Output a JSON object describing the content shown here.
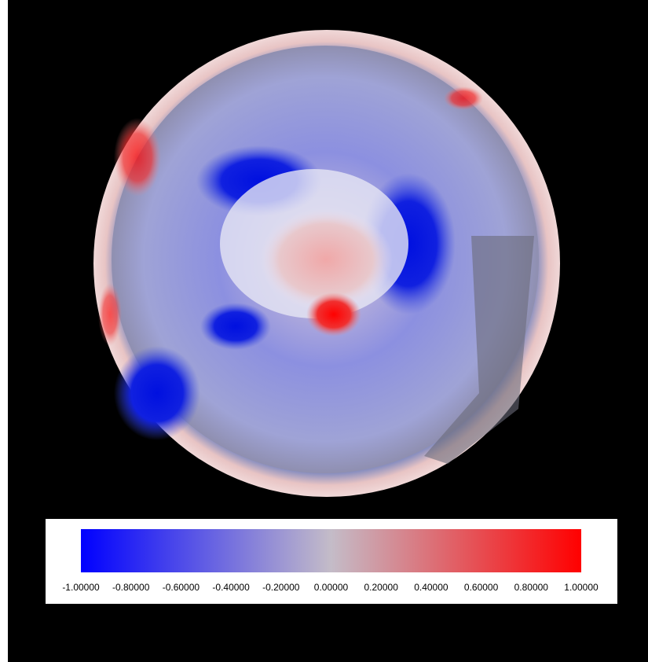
{
  "chart_data": {
    "type": "colorbar",
    "colormap": [
      "#0000ff",
      "#c4bcc8",
      "#ff0000"
    ],
    "xlim": [
      -1,
      1
    ],
    "xticks": [
      {
        "value": -1,
        "label": "-1.00000"
      },
      {
        "value": -0.8,
        "label": "-0.80000"
      },
      {
        "value": -0.6,
        "label": "-0.60000"
      },
      {
        "value": -0.4,
        "label": "-0.40000"
      },
      {
        "value": -0.2,
        "label": "-0.20000"
      },
      {
        "value": 0,
        "label": "0.00000"
      },
      {
        "value": 0.2,
        "label": "0.20000"
      },
      {
        "value": 0.4,
        "label": "0.40000"
      },
      {
        "value": 0.6,
        "label": "0.60000"
      },
      {
        "value": 0.8,
        "label": "0.80000"
      },
      {
        "value": 1,
        "label": "1.00000"
      }
    ]
  }
}
